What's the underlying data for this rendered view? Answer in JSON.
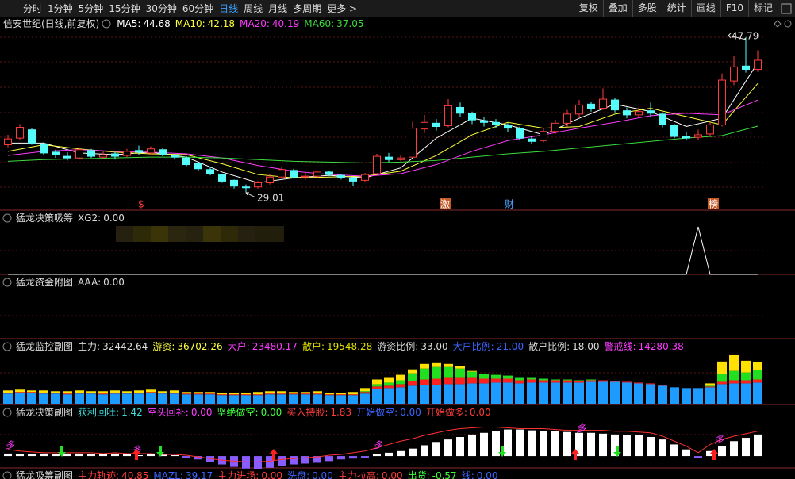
{
  "toolbar": {
    "tabs": [
      "分时",
      "1分钟",
      "5分钟",
      "15分钟",
      "30分钟",
      "60分钟",
      "日线",
      "周线",
      "月线",
      "多周期",
      "更多 >"
    ],
    "active": 6,
    "buttons": [
      "复权",
      "叠加",
      "多股",
      "统计",
      "画线",
      "F10",
      "标记"
    ]
  },
  "main": {
    "title": "信安世纪(日线,前复权)",
    "ylim": [
      26.8,
      49.5
    ],
    "up_color": "#ff3c3c",
    "down_color": "#54fcfc",
    "ma": [
      {
        "label": "MA5:",
        "value": 44.68,
        "color": "#ffffff",
        "values": [
          35.0,
          35.0,
          33.8,
          33.6,
          33.9,
          33.3,
          31.5,
          30.2,
          30.8,
          31.1,
          30.8,
          32.0,
          35.6,
          38.0,
          37.2,
          36.0,
          38.0,
          39.7,
          38.8,
          37.0,
          38.0,
          44.68
        ]
      },
      {
        "label": "MA10:",
        "value": 42.18,
        "color": "#ffff3c",
        "values": [
          34.0,
          34.8,
          34.3,
          33.9,
          33.7,
          33.6,
          32.5,
          31.2,
          30.8,
          30.9,
          31.0,
          31.6,
          33.5,
          36.0,
          37.5,
          36.8,
          37.0,
          38.5,
          39.2,
          38.2,
          37.2,
          42.18
        ]
      },
      {
        "label": "MA20:",
        "value": 40.19,
        "color": "#ff3cff",
        "values": [
          33.5,
          34.0,
          34.2,
          34.0,
          33.9,
          33.7,
          33.2,
          32.3,
          31.6,
          31.2,
          31.0,
          31.3,
          32.4,
          34.0,
          35.3,
          36.0,
          36.8,
          37.5,
          38.3,
          38.6,
          38.4,
          40.19
        ]
      },
      {
        "label": "MA60:",
        "value": 37.05,
        "color": "#3cdc3c",
        "values": [
          32.8,
          33.0,
          33.1,
          33.2,
          33.3,
          33.3,
          33.2,
          33.0,
          32.8,
          32.7,
          32.6,
          32.7,
          32.9,
          33.3,
          33.7,
          34.0,
          34.4,
          34.8,
          35.2,
          35.6,
          35.9,
          37.05
        ]
      }
    ],
    "ma_index": [
      0,
      3,
      6,
      9,
      12,
      15,
      18,
      21,
      24,
      27,
      30,
      33,
      36,
      39,
      42,
      45,
      48,
      51,
      54,
      57,
      60,
      63
    ],
    "candles": [
      [
        34.8,
        35.5,
        36.0,
        34.5
      ],
      [
        35.6,
        36.9,
        37.3,
        35.4
      ],
      [
        36.6,
        35.0,
        36.8,
        34.8
      ],
      [
        34.9,
        33.8,
        35.1,
        33.5
      ],
      [
        33.9,
        33.6,
        34.2,
        33.2
      ],
      [
        33.4,
        33.2,
        33.9,
        32.9
      ],
      [
        33.2,
        34.2,
        34.5,
        33.0
      ],
      [
        34.1,
        33.4,
        34.3,
        33.2
      ],
      [
        33.3,
        33.6,
        34.0,
        33.1
      ],
      [
        33.7,
        33.4,
        33.9,
        33.0
      ],
      [
        33.5,
        34.0,
        34.3,
        33.3
      ],
      [
        34.1,
        33.9,
        34.7,
        33.6
      ],
      [
        33.8,
        34.3,
        34.6,
        33.6
      ],
      [
        34.2,
        33.6,
        34.4,
        33.4
      ],
      [
        33.5,
        33.3,
        33.7,
        33.0
      ],
      [
        33.2,
        32.4,
        33.4,
        32.2
      ],
      [
        32.5,
        31.9,
        32.6,
        31.7
      ],
      [
        31.8,
        31.3,
        32.1,
        31.1
      ],
      [
        31.2,
        30.4,
        31.3,
        30.2
      ],
      [
        30.5,
        29.8,
        30.6,
        29.5
      ],
      [
        29.7,
        29.6,
        30.0,
        29.01
      ],
      [
        29.7,
        30.2,
        30.4,
        29.5
      ],
      [
        30.2,
        30.9,
        31.2,
        30.0
      ],
      [
        30.9,
        31.8,
        32.1,
        30.8
      ],
      [
        31.7,
        30.9,
        31.9,
        30.7
      ],
      [
        30.9,
        31.0,
        31.4,
        30.6
      ],
      [
        31.0,
        31.5,
        31.7,
        30.8
      ],
      [
        31.5,
        31.2,
        31.7,
        31.0
      ],
      [
        31.1,
        30.8,
        31.3,
        30.6
      ],
      [
        30.8,
        30.4,
        30.9,
        29.8
      ],
      [
        30.5,
        31.2,
        31.4,
        30.3
      ],
      [
        31.3,
        33.4,
        33.7,
        31.2
      ],
      [
        33.3,
        33.0,
        33.8,
        32.7
      ],
      [
        33.0,
        33.2,
        33.6,
        32.8
      ],
      [
        33.3,
        36.8,
        37.6,
        33.2
      ],
      [
        36.7,
        37.5,
        38.4,
        36.2
      ],
      [
        37.4,
        37.0,
        37.9,
        36.5
      ],
      [
        37.1,
        39.5,
        40.3,
        36.9
      ],
      [
        39.3,
        38.6,
        39.9,
        38.2
      ],
      [
        38.6,
        37.8,
        38.8,
        37.3
      ],
      [
        37.7,
        37.5,
        38.2,
        37.0
      ],
      [
        37.5,
        37.2,
        37.9,
        36.8
      ],
      [
        37.1,
        36.8,
        37.4,
        36.3
      ],
      [
        36.8,
        35.6,
        37.0,
        35.3
      ],
      [
        35.5,
        35.2,
        35.9,
        34.9
      ],
      [
        35.3,
        36.4,
        36.8,
        35.1
      ],
      [
        36.4,
        37.4,
        37.8,
        36.1
      ],
      [
        37.4,
        38.5,
        39.0,
        37.0
      ],
      [
        38.5,
        39.6,
        40.2,
        38.2
      ],
      [
        39.7,
        39.2,
        40.0,
        38.8
      ],
      [
        39.2,
        40.3,
        41.6,
        39.0
      ],
      [
        40.2,
        39.0,
        40.4,
        38.7
      ],
      [
        38.9,
        38.4,
        39.3,
        38.0
      ],
      [
        38.4,
        38.8,
        39.3,
        38.2
      ],
      [
        38.9,
        38.6,
        39.9,
        38.2
      ],
      [
        38.5,
        37.2,
        38.7,
        36.9
      ],
      [
        37.1,
        35.8,
        37.3,
        35.6
      ],
      [
        35.8,
        35.6,
        36.4,
        35.3
      ],
      [
        35.7,
        36.0,
        36.6,
        35.4
      ],
      [
        36.1,
        37.2,
        37.5,
        35.8
      ],
      [
        37.2,
        42.6,
        43.4,
        37.0
      ],
      [
        42.5,
        44.2,
        45.5,
        42.0
      ],
      [
        44.3,
        43.9,
        47.79,
        43.5
      ],
      [
        43.9,
        45.0,
        46.2,
        43.6
      ]
    ],
    "high_label": 47.79,
    "low_label": 29.01,
    "markers": [
      "$",
      "激",
      "财",
      "榜"
    ]
  },
  "panels": [
    {
      "title": "猛龙决策吸筹",
      "items": [
        {
          "label": "XG2:",
          "value": "0.00",
          "color": "#dddddd"
        }
      ]
    },
    {
      "title": "猛龙资金附图",
      "items": [
        {
          "label": "AAA:",
          "value": "0.00",
          "color": "#dddddd"
        }
      ]
    },
    {
      "title": "猛龙监控副图",
      "items": [
        {
          "label": "主力:",
          "value": 32442.64,
          "color": "#dddddd"
        },
        {
          "label": "游资:",
          "value": 36702.26,
          "color": "#ffff3c"
        },
        {
          "label": "大户:",
          "value": 23480.17,
          "color": "#ff3cff"
        },
        {
          "label": "散户:",
          "value": 19548.28,
          "color": "#e0e000"
        },
        {
          "label": "游资比例:",
          "value": "33.00",
          "color": "#dddddd"
        },
        {
          "label": "大户比例:",
          "value": "21.00",
          "color": "#3c64ff"
        },
        {
          "label": "散户比例:",
          "value": "18.00",
          "color": "#dddddd"
        },
        {
          "label": "警戒线:",
          "value": 14280.38,
          "color": "#ff3cff"
        }
      ]
    },
    {
      "title": "猛龙决策副图",
      "items": [
        {
          "label": "获利回吐:",
          "value": 1.42,
          "color": "#3cdcdc"
        },
        {
          "label": "空头回补:",
          "value": "0.00",
          "color": "#ff3cff"
        },
        {
          "label": "坚绝做空:",
          "value": "0.00",
          "color": "#3cff3c"
        },
        {
          "label": "买入持股:",
          "value": 1.83,
          "color": "#ff3c3c"
        },
        {
          "label": "开始做空:",
          "value": "0.00",
          "color": "#3c64ff"
        },
        {
          "label": "开始做多:",
          "value": "0.00",
          "color": "#ff3c3c"
        }
      ]
    },
    {
      "title": "猛龙吸筹副图",
      "items": [
        {
          "label": "主力轨迹:",
          "value": 40.85,
          "color": "#ff3c3c"
        },
        {
          "label": "MAZL:",
          "value": 39.17,
          "color": "#3c64ff"
        },
        {
          "label": "主力进场:",
          "value": "0.00",
          "color": "#ff3c3c"
        },
        {
          "label": "洗盘:",
          "value": "0.00",
          "color": "#3c64ff"
        },
        {
          "label": "主力拉高:",
          "value": "0.00",
          "color": "#ff3c3c"
        },
        {
          "label": "出货:",
          "value": -0.57,
          "color": "#3cff3c"
        },
        {
          "label": "线:",
          "value": "0.00",
          "color": "#3c64ff"
        }
      ]
    }
  ],
  "xg2": {
    "ylim": [
      0,
      1
    ],
    "values": [
      0,
      0,
      0,
      0,
      0,
      0,
      0,
      0,
      0,
      0,
      0,
      0,
      0,
      0,
      0,
      0,
      0,
      0,
      0,
      0,
      0,
      0,
      0,
      0,
      0,
      0,
      0,
      0,
      0,
      0,
      0,
      0,
      0,
      0,
      0,
      0,
      0,
      0,
      0,
      0,
      0,
      0,
      0,
      0,
      0,
      0,
      0,
      0,
      0,
      0,
      0,
      0,
      0,
      0,
      0,
      0,
      0,
      0,
      1,
      0,
      0,
      0,
      0,
      0
    ]
  },
  "monitor": {
    "ylim": [
      0,
      65
    ],
    "colors": [
      "#1e9bff",
      "#ff2020",
      "#20e020",
      "#ffe000"
    ],
    "bars": [
      [
        14,
        1,
        0,
        3
      ],
      [
        15,
        1,
        0,
        3
      ],
      [
        15,
        1,
        0,
        2
      ],
      [
        14,
        1,
        0,
        3
      ],
      [
        14,
        1,
        0,
        2
      ],
      [
        13,
        1,
        0,
        3
      ],
      [
        14,
        1,
        0,
        3
      ],
      [
        14,
        1,
        0,
        2
      ],
      [
        13,
        1,
        0,
        3
      ],
      [
        14,
        1,
        0,
        3
      ],
      [
        14,
        1,
        0,
        2
      ],
      [
        14,
        1,
        0,
        3
      ],
      [
        15,
        1,
        0,
        3
      ],
      [
        14,
        1,
        0,
        2
      ],
      [
        14,
        1,
        0,
        3
      ],
      [
        13,
        1,
        0,
        2
      ],
      [
        13,
        1,
        0,
        2
      ],
      [
        13,
        1,
        0,
        2
      ],
      [
        12,
        1,
        0,
        2
      ],
      [
        12,
        1,
        0,
        2
      ],
      [
        12,
        1,
        0,
        2
      ],
      [
        12,
        1,
        0,
        3
      ],
      [
        13,
        1,
        0,
        3
      ],
      [
        13,
        1,
        0,
        3
      ],
      [
        13,
        1,
        0,
        2
      ],
      [
        13,
        1,
        0,
        2
      ],
      [
        13,
        1,
        0,
        3
      ],
      [
        12,
        1,
        0,
        2
      ],
      [
        12,
        1,
        0,
        2
      ],
      [
        12,
        1,
        0,
        3
      ],
      [
        14,
        2,
        1,
        4
      ],
      [
        20,
        3,
        3,
        6
      ],
      [
        21,
        3,
        4,
        6
      ],
      [
        22,
        4,
        5,
        7
      ],
      [
        24,
        6,
        10,
        5
      ],
      [
        25,
        7,
        14,
        6
      ],
      [
        25,
        8,
        15,
        5
      ],
      [
        26,
        8,
        14,
        4
      ],
      [
        26,
        8,
        12,
        3
      ],
      [
        27,
        7,
        8,
        1
      ],
      [
        27,
        6,
        6,
        0
      ],
      [
        28,
        5,
        5,
        0
      ],
      [
        28,
        5,
        4,
        0
      ],
      [
        27,
        4,
        3,
        0
      ],
      [
        28,
        4,
        2,
        0
      ],
      [
        28,
        3,
        2,
        0
      ],
      [
        28,
        3,
        1,
        0
      ],
      [
        28,
        3,
        1,
        0
      ],
      [
        28,
        2,
        1,
        0
      ],
      [
        29,
        2,
        1,
        0
      ],
      [
        29,
        2,
        0,
        0
      ],
      [
        29,
        1,
        0,
        0
      ],
      [
        28,
        1,
        0,
        0
      ],
      [
        27,
        1,
        0,
        0
      ],
      [
        26,
        1,
        0,
        0
      ],
      [
        24,
        1,
        0,
        0
      ],
      [
        22,
        0,
        0,
        0
      ],
      [
        21,
        0,
        0,
        0
      ],
      [
        21,
        0,
        0,
        0
      ],
      [
        22,
        1,
        1,
        3
      ],
      [
        26,
        3,
        10,
        16
      ],
      [
        27,
        4,
        12,
        20
      ],
      [
        27,
        4,
        10,
        15
      ],
      [
        28,
        4,
        12,
        10
      ]
    ]
  },
  "decision": {
    "ylim": [
      -20,
      45
    ],
    "signal_text": "多",
    "up_color": "#ffffff",
    "down_color": "#8a5cff",
    "line_color": "#ff3030",
    "values": [
      3,
      2,
      2,
      3,
      2,
      3,
      3,
      2,
      3,
      3,
      2,
      1,
      2,
      2,
      1,
      -2,
      -4,
      -7,
      -10,
      -13,
      -15,
      -16,
      -14,
      -12,
      -10,
      -9,
      -8,
      -6,
      -4,
      -3,
      -2,
      2,
      4,
      6,
      9,
      13,
      17,
      20,
      23,
      26,
      28,
      30,
      32,
      32,
      31,
      30,
      30,
      29,
      28,
      28,
      27,
      26,
      25,
      25,
      23,
      20,
      14,
      8,
      -2,
      6,
      12,
      18,
      22,
      26
    ],
    "line": [
      8,
      6,
      5,
      4,
      4,
      4,
      4,
      4,
      3,
      4,
      3,
      3,
      3,
      2,
      2,
      1,
      -1,
      -3,
      -5,
      -6,
      -7,
      -7,
      -6,
      -4,
      -3,
      -2,
      -1,
      1,
      2,
      4,
      6,
      10,
      14,
      18,
      21,
      25,
      28,
      31,
      33,
      34,
      35,
      35,
      34,
      33,
      33,
      33,
      32,
      31,
      31,
      31,
      31,
      30,
      30,
      29,
      28,
      24,
      18,
      12,
      4,
      14,
      20,
      24,
      27,
      30
    ]
  }
}
